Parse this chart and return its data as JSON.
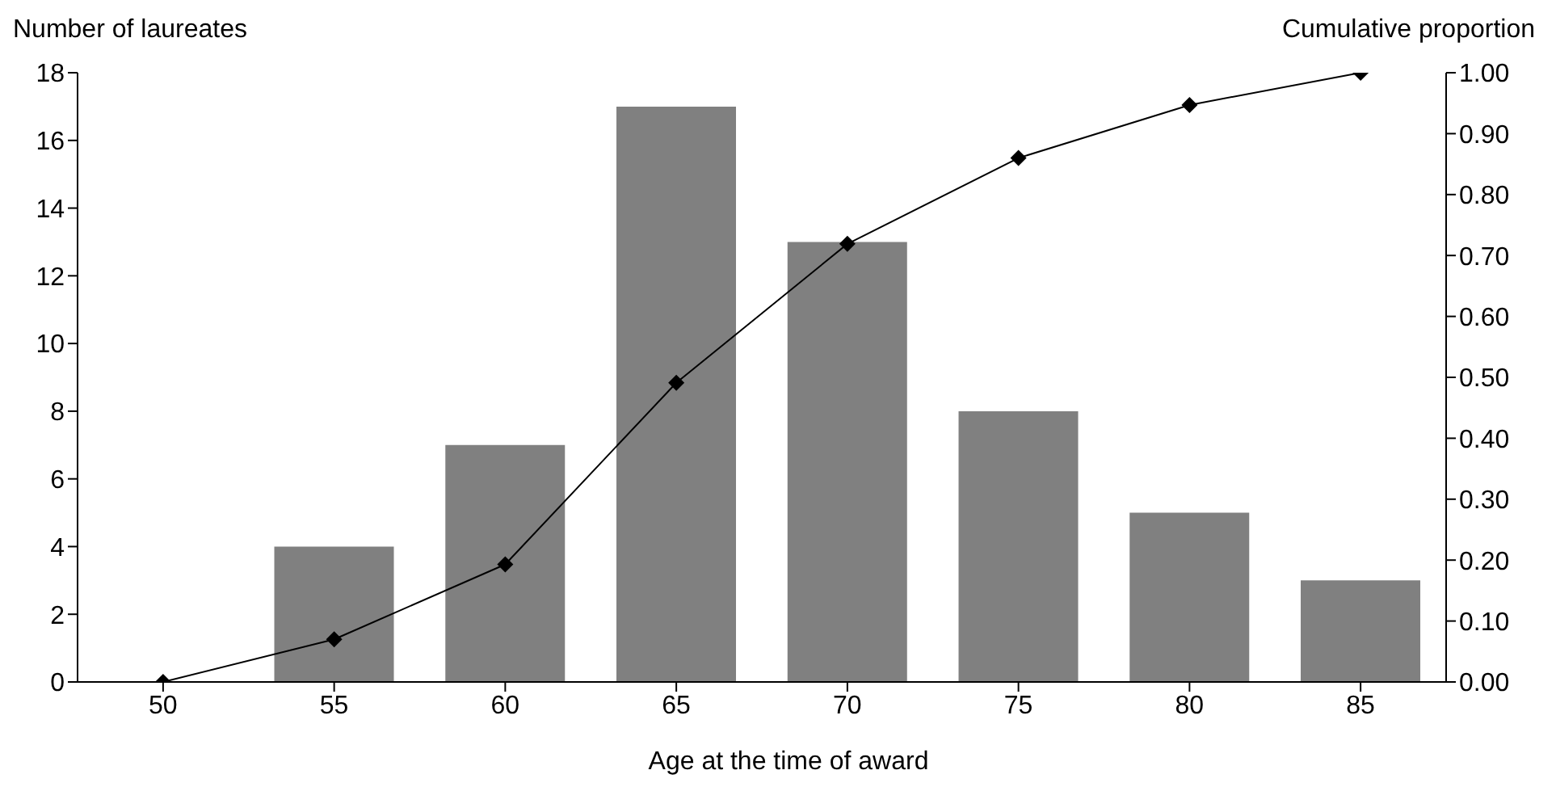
{
  "chart_data": {
    "type": "bar",
    "xlabel": "Age at the time of award",
    "ylabel": "Number of laureates",
    "y2label": "Cumulative proportion",
    "categories": [
      "50",
      "55",
      "60",
      "65",
      "70",
      "75",
      "80",
      "85"
    ],
    "series": [
      {
        "color": "#808080",
        "values": [
          0,
          4,
          7,
          17,
          13,
          8,
          5,
          3
        ]
      },
      {
        "type": "line",
        "axis": "y2",
        "color": "#000000",
        "values": [
          0,
          0.07,
          0.193,
          0.491,
          0.719,
          0.86,
          0.947,
          1
        ]
      }
    ],
    "ylim": [
      0,
      18
    ],
    "yticks": [
      0,
      2,
      4,
      6,
      8,
      10,
      12,
      14,
      16,
      18
    ],
    "y2lim": [
      0,
      1
    ],
    "y2ticks": [
      {
        "value": 0,
        "label": "0.00"
      },
      {
        "value": 0.1,
        "label": "0.10"
      },
      {
        "value": 0.2,
        "label": "0.20"
      },
      {
        "value": 0.3,
        "label": "0.30"
      },
      {
        "value": 0.4,
        "label": "0.40"
      },
      {
        "value": 0.5,
        "label": "0.50"
      },
      {
        "value": 0.6,
        "label": "0.60"
      },
      {
        "value": 0.7,
        "label": "0.70"
      },
      {
        "value": 0.8,
        "label": "0.80"
      },
      {
        "value": 0.9,
        "label": "0.90"
      },
      {
        "value": 1,
        "label": "1.00"
      }
    ],
    "grid": false,
    "legend": false,
    "marker": "diamond",
    "line_style": "solid"
  }
}
